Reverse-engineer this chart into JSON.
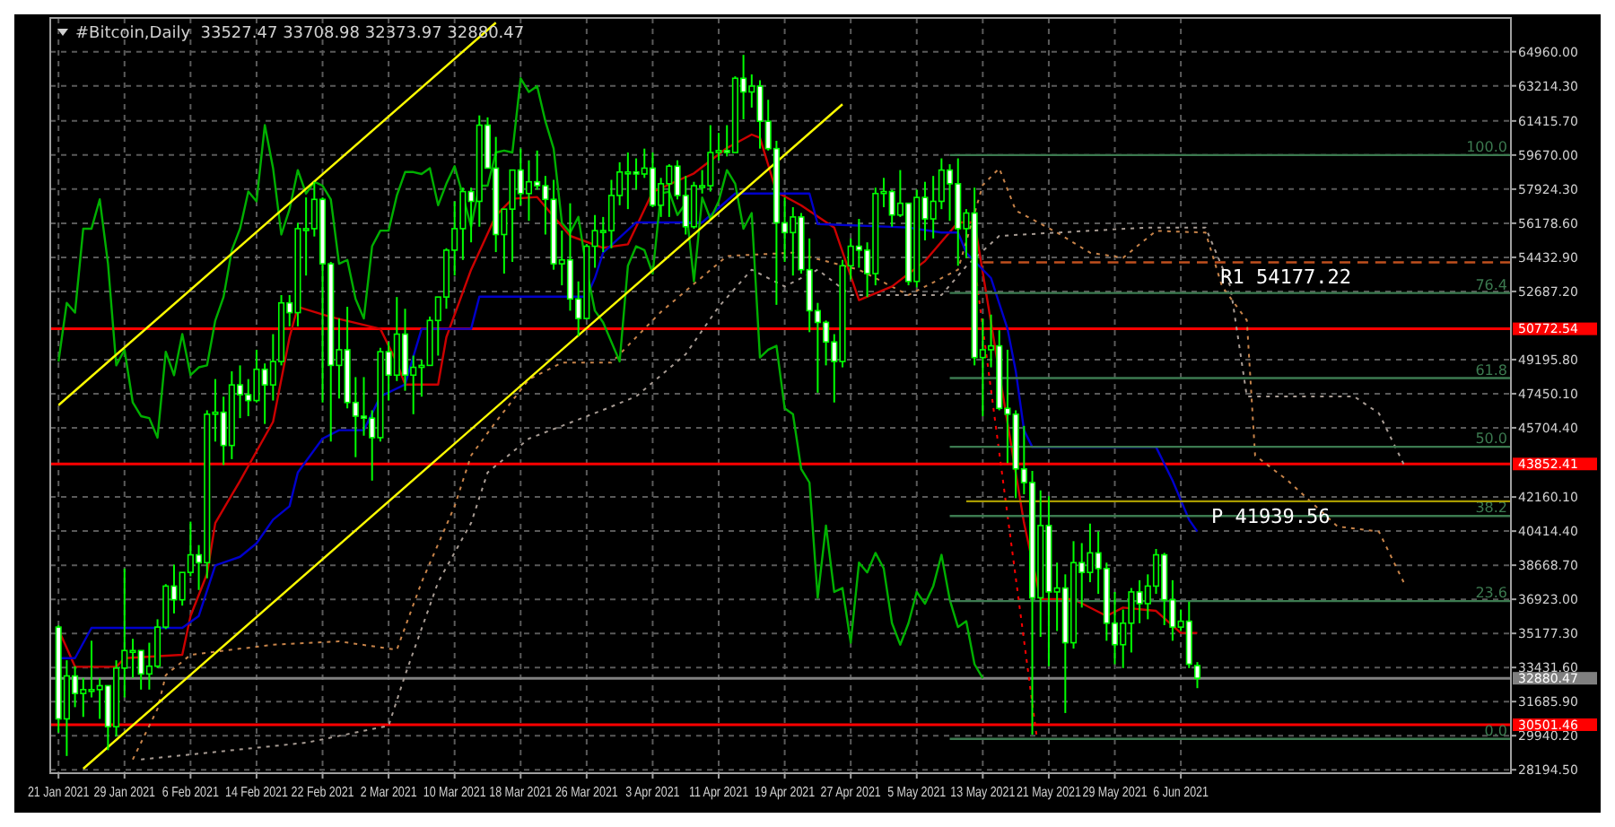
{
  "chart_data": {
    "type": "candlestick",
    "title": "#Bitcoin,Daily  33527.47 33708.98 32373.97 32880.47",
    "color": "#00ff00",
    "x": [
      "2021-01-21",
      "2021-01-22",
      "2021-01-23",
      "2021-01-24",
      "2021-01-25",
      "2021-01-26",
      "2021-01-27",
      "2021-01-28",
      "2021-01-29",
      "2021-01-30",
      "2021-01-31",
      "2021-02-01",
      "2021-02-02",
      "2021-02-03",
      "2021-02-04",
      "2021-02-05",
      "2021-02-06",
      "2021-02-07",
      "2021-02-08",
      "2021-02-09",
      "2021-02-10",
      "2021-02-11",
      "2021-02-12",
      "2021-02-13",
      "2021-02-14",
      "2021-02-15",
      "2021-02-16",
      "2021-02-17",
      "2021-02-18",
      "2021-02-19",
      "2021-02-20",
      "2021-02-21",
      "2021-02-22",
      "2021-02-23",
      "2021-02-24",
      "2021-02-25",
      "2021-02-26",
      "2021-02-27",
      "2021-02-28",
      "2021-03-01",
      "2021-03-02",
      "2021-03-03",
      "2021-03-04",
      "2021-03-05",
      "2021-03-06",
      "2021-03-07",
      "2021-03-08",
      "2021-03-09",
      "2021-03-10",
      "2021-03-11",
      "2021-03-12",
      "2021-03-13",
      "2021-03-14",
      "2021-03-15",
      "2021-03-16",
      "2021-03-17",
      "2021-03-18",
      "2021-03-19",
      "2021-03-20",
      "2021-03-21",
      "2021-03-22",
      "2021-03-23",
      "2021-03-24",
      "2021-03-25",
      "2021-03-26",
      "2021-03-27",
      "2021-03-28",
      "2021-03-29",
      "2021-03-30",
      "2021-03-31",
      "2021-04-01",
      "2021-04-02",
      "2021-04-03",
      "2021-04-04",
      "2021-04-05",
      "2021-04-06",
      "2021-04-07",
      "2021-04-08",
      "2021-04-09",
      "2021-04-10",
      "2021-04-11",
      "2021-04-12",
      "2021-04-13",
      "2021-04-14",
      "2021-04-15",
      "2021-04-16",
      "2021-04-17",
      "2021-04-18",
      "2021-04-19",
      "2021-04-20",
      "2021-04-21",
      "2021-04-22",
      "2021-04-23",
      "2021-04-24",
      "2021-04-25",
      "2021-04-26",
      "2021-04-27",
      "2021-04-28",
      "2021-04-29",
      "2021-04-30",
      "2021-05-01",
      "2021-05-02",
      "2021-05-03",
      "2021-05-04",
      "2021-05-05",
      "2021-05-06",
      "2021-05-07",
      "2021-05-08",
      "2021-05-09",
      "2021-05-10",
      "2021-05-11",
      "2021-05-12",
      "2021-05-13",
      "2021-05-14",
      "2021-05-15",
      "2021-05-16",
      "2021-05-17",
      "2021-05-18",
      "2021-05-19",
      "2021-05-20",
      "2021-05-21",
      "2021-05-22",
      "2021-05-23",
      "2021-05-24",
      "2021-05-25",
      "2021-05-26",
      "2021-05-27",
      "2021-05-28",
      "2021-05-29",
      "2021-05-30",
      "2021-05-31",
      "2021-06-01",
      "2021-06-02",
      "2021-06-03",
      "2021-06-04",
      "2021-06-05",
      "2021-06-06",
      "2021-06-07",
      "2021-06-08"
    ],
    "ohlc": [
      [
        35500,
        35600,
        30100,
        30800
      ],
      [
        30800,
        33800,
        28900,
        33000
      ],
      [
        33000,
        33500,
        31400,
        32100
      ],
      [
        32100,
        32900,
        30900,
        32300
      ],
      [
        32300,
        34800,
        31900,
        32300
      ],
      [
        32300,
        32900,
        30800,
        32500
      ],
      [
        32500,
        32500,
        29200,
        30400
      ],
      [
        30400,
        33800,
        29900,
        33400
      ],
      [
        33400,
        38500,
        31900,
        34300
      ],
      [
        34300,
        34900,
        32900,
        34300
      ],
      [
        34300,
        34300,
        32300,
        33100
      ],
      [
        33100,
        34700,
        32300,
        33500
      ],
      [
        33500,
        35900,
        33400,
        35500
      ],
      [
        35500,
        37700,
        35400,
        37600
      ],
      [
        37600,
        38700,
        36200,
        36900
      ],
      [
        36900,
        38300,
        36600,
        38300
      ],
      [
        38300,
        40900,
        38100,
        39200
      ],
      [
        39200,
        39700,
        37400,
        38800
      ],
      [
        38800,
        46600,
        38000,
        46400
      ],
      [
        46400,
        48200,
        45000,
        46500
      ],
      [
        46500,
        47300,
        43800,
        44800
      ],
      [
        44800,
        48600,
        44100,
        47900
      ],
      [
        47900,
        48900,
        46200,
        47400
      ],
      [
        47400,
        48200,
        46300,
        47100
      ],
      [
        47100,
        49700,
        47000,
        48700
      ],
      [
        48700,
        49000,
        45900,
        47900
      ],
      [
        47900,
        50500,
        47100,
        49100
      ],
      [
        49100,
        52500,
        48900,
        52100
      ],
      [
        52100,
        52500,
        50900,
        51600
      ],
      [
        51600,
        56200,
        50900,
        55900
      ],
      [
        55900,
        57500,
        53500,
        55900
      ],
      [
        55900,
        58300,
        55500,
        57400
      ],
      [
        57400,
        57500,
        47000,
        54100
      ],
      [
        54100,
        54200,
        45000,
        48900
      ],
      [
        48900,
        51300,
        47200,
        49700
      ],
      [
        49700,
        51900,
        46700,
        47000
      ],
      [
        47000,
        48300,
        44200,
        46300
      ],
      [
        46300,
        48300,
        45300,
        46200
      ],
      [
        46200,
        46600,
        43000,
        45200
      ],
      [
        45200,
        49800,
        45000,
        49600
      ],
      [
        49600,
        50100,
        47100,
        48400
      ],
      [
        48400,
        52400,
        48100,
        50500
      ],
      [
        50500,
        51800,
        47600,
        48400
      ],
      [
        48400,
        49400,
        46400,
        48800
      ],
      [
        48800,
        49200,
        47300,
        48900
      ],
      [
        48900,
        51400,
        48900,
        51200
      ],
      [
        51200,
        52400,
        49400,
        52400
      ],
      [
        52400,
        54900,
        51800,
        54800
      ],
      [
        54800,
        57300,
        53500,
        55900
      ],
      [
        55900,
        58000,
        54300,
        57800
      ],
      [
        57800,
        58000,
        55200,
        57300
      ],
      [
        57300,
        61700,
        56000,
        61200
      ],
      [
        61200,
        61600,
        59000,
        59000
      ],
      [
        59000,
        60600,
        54700,
        55600
      ],
      [
        55600,
        56900,
        53600,
        56900
      ],
      [
        56900,
        58900,
        54200,
        58900
      ],
      [
        58900,
        60000,
        57100,
        57700
      ],
      [
        57700,
        59400,
        56300,
        58300
      ],
      [
        58300,
        59900,
        57900,
        58100
      ],
      [
        58100,
        58600,
        55600,
        57400
      ],
      [
        57400,
        58400,
        53800,
        54100
      ],
      [
        54100,
        55800,
        53000,
        54300
      ],
      [
        54300,
        57200,
        51700,
        52300
      ],
      [
        52300,
        53200,
        50400,
        51300
      ],
      [
        51300,
        55100,
        51300,
        55000
      ],
      [
        55000,
        56600,
        53900,
        55800
      ],
      [
        55800,
        56500,
        54700,
        55800
      ],
      [
        55800,
        58400,
        54900,
        57600
      ],
      [
        57600,
        59300,
        57100,
        58800
      ],
      [
        58800,
        59800,
        56900,
        58800
      ],
      [
        58800,
        59500,
        57900,
        58700
      ],
      [
        58700,
        60000,
        58500,
        59000
      ],
      [
        59000,
        59800,
        57000,
        57100
      ],
      [
        57100,
        58500,
        56500,
        58200
      ],
      [
        58200,
        59200,
        56500,
        59100
      ],
      [
        59100,
        59400,
        57400,
        57600
      ],
      [
        57600,
        58600,
        55600,
        56000
      ],
      [
        56000,
        58300,
        55900,
        58100
      ],
      [
        58100,
        58900,
        57700,
        58100
      ],
      [
        58100,
        61200,
        57800,
        59800
      ],
      [
        59800,
        60800,
        59400,
        59900
      ],
      [
        59900,
        61200,
        59600,
        59800
      ],
      [
        59800,
        63700,
        59800,
        63600
      ],
      [
        63600,
        64800,
        61500,
        62900
      ],
      [
        62900,
        63800,
        62100,
        63200
      ],
      [
        63200,
        63500,
        60000,
        61400
      ],
      [
        61400,
        62500,
        59900,
        60000
      ],
      [
        60000,
        60400,
        52000,
        56200
      ],
      [
        56200,
        57500,
        54200,
        55700
      ],
      [
        55700,
        57000,
        53500,
        56500
      ],
      [
        56500,
        56700,
        53600,
        53800
      ],
      [
        53800,
        55400,
        50600,
        51700
      ],
      [
        51700,
        52100,
        47500,
        51100
      ],
      [
        51100,
        51200,
        48900,
        50100
      ],
      [
        50100,
        50500,
        47000,
        49100
      ],
      [
        49100,
        54300,
        48800,
        54000
      ],
      [
        54000,
        55400,
        53300,
        55000
      ],
      [
        55000,
        56400,
        53900,
        54800
      ],
      [
        54800,
        55200,
        52400,
        53600
      ],
      [
        53600,
        58000,
        53000,
        57700
      ],
      [
        57700,
        58500,
        57000,
        57800
      ],
      [
        57800,
        57900,
        56000,
        56600
      ],
      [
        56600,
        58900,
        56500,
        57200
      ],
      [
        57200,
        57200,
        53000,
        53200
      ],
      [
        53200,
        57900,
        52900,
        57500
      ],
      [
        57500,
        58300,
        55300,
        56400
      ],
      [
        56400,
        58600,
        55400,
        57300
      ],
      [
        57300,
        59500,
        56900,
        58900
      ],
      [
        58900,
        59200,
        56300,
        58200
      ],
      [
        58200,
        59500,
        54000,
        55900
      ],
      [
        55900,
        56900,
        54400,
        56700
      ],
      [
        56700,
        58000,
        48900,
        49300
      ],
      [
        49300,
        51300,
        46300,
        49700
      ],
      [
        49700,
        51500,
        48800,
        49900
      ],
      [
        49900,
        50700,
        46600,
        46700
      ],
      [
        46700,
        49700,
        43900,
        46400
      ],
      [
        46400,
        46600,
        42100,
        43600
      ],
      [
        43600,
        45800,
        42300,
        42900
      ],
      [
        42900,
        43500,
        30000,
        37000
      ],
      [
        37000,
        42500,
        35000,
        40700
      ],
      [
        40700,
        42200,
        33500,
        37300
      ],
      [
        37300,
        38800,
        35300,
        37500
      ],
      [
        37500,
        38200,
        31100,
        34700
      ],
      [
        34700,
        39900,
        34400,
        38800
      ],
      [
        38800,
        39800,
        36500,
        38300
      ],
      [
        38300,
        40800,
        37800,
        39300
      ],
      [
        39300,
        40400,
        37200,
        38500
      ],
      [
        38500,
        38800,
        34800,
        35700
      ],
      [
        35700,
        37300,
        33600,
        34600
      ],
      [
        34600,
        36400,
        33400,
        35700
      ],
      [
        35700,
        37500,
        34200,
        37300
      ],
      [
        37300,
        37900,
        35700,
        36700
      ],
      [
        36700,
        38200,
        35900,
        37600
      ],
      [
        37600,
        39500,
        37200,
        39200
      ],
      [
        39200,
        39300,
        35600,
        36900
      ],
      [
        36900,
        37900,
        34800,
        35500
      ],
      [
        35500,
        36400,
        35300,
        35800
      ],
      [
        35800,
        36800,
        33400,
        33600
      ],
      [
        33527.47,
        33708.98,
        32373.97,
        32880.47
      ]
    ],
    "series": [
      {
        "type": "line",
        "color": "#c8844a",
        "line_style": "dotted",
        "x": [
          "2021-01-30",
          "2021-02-02",
          "2021-02-03",
          "2021-02-06",
          "2021-02-16",
          "2021-02-24",
          "2021-03-03",
          "2021-03-06",
          "2021-03-10",
          "2021-03-12",
          "2021-03-15",
          "2021-03-19",
          "2021-03-23",
          "2021-03-29",
          "2021-04-04",
          "2021-04-12",
          "2021-04-20",
          "2021-04-28",
          "2021-05-04",
          "2021-05-10",
          "2021-05-13",
          "2021-05-15",
          "2021-05-17",
          "2021-05-22",
          "2021-05-26",
          "2021-05-30",
          "2021-06-03",
          "2021-06-09",
          "2021-06-11",
          "2021-06-14",
          "2021-06-15",
          "2021-06-19",
          "2021-06-25",
          "2021-06-30",
          "2021-07-03"
        ],
        "values": [
          28720,
          31310,
          33040,
          34080,
          34600,
          34770,
          34340,
          37800,
          41690,
          44290,
          46010,
          48180,
          49040,
          49040,
          51640,
          54500,
          54670,
          53800,
          52500,
          53800,
          58130,
          58990,
          56830,
          55700,
          54670,
          54410,
          55790,
          55700,
          52940,
          51210,
          44290,
          42990,
          40650,
          40390,
          37800
        ]
      },
      {
        "type": "line",
        "color": "#a89c94",
        "line_style": "dotted",
        "x": [
          "2021-01-31",
          "2021-02-10",
          "2021-02-20",
          "2021-03-02",
          "2021-03-04",
          "2021-03-08",
          "2021-03-12",
          "2021-03-14",
          "2021-03-19",
          "2021-03-28",
          "2021-04-01",
          "2021-04-07",
          "2021-04-11",
          "2021-04-15",
          "2021-04-19",
          "2021-04-23",
          "2021-04-27",
          "2021-05-08",
          "2021-05-11",
          "2021-05-15",
          "2021-05-22",
          "2021-06-02",
          "2021-06-09",
          "2021-06-12",
          "2021-06-14",
          "2021-06-27",
          "2021-06-30",
          "2021-07-03"
        ],
        "values": [
          28720,
          29150,
          29580,
          30450,
          33040,
          37800,
          40830,
          43420,
          45150,
          46620,
          47310,
          49470,
          51900,
          53800,
          52940,
          53800,
          52500,
          52500,
          53980,
          55530,
          55700,
          55960,
          55960,
          52940,
          47310,
          47310,
          46450,
          43850
        ]
      },
      {
        "type": "line",
        "color": "#cc0000",
        "x": [
          "2021-01-21",
          "2021-01-23",
          "2021-01-28",
          "2021-01-29",
          "2021-02-05",
          "2021-02-06",
          "2021-02-08",
          "2021-02-09",
          "2021-02-12",
          "2021-02-16",
          "2021-02-18",
          "2021-02-19",
          "2021-02-23",
          "2021-03-01",
          "2021-03-03",
          "2021-03-04",
          "2021-03-08",
          "2021-03-09",
          "2021-03-12",
          "2021-03-15",
          "2021-03-17",
          "2021-03-20",
          "2021-03-24",
          "2021-03-28",
          "2021-03-31",
          "2021-04-03",
          "2021-04-08",
          "2021-04-12",
          "2021-04-15",
          "2021-04-16",
          "2021-04-18",
          "2021-04-21",
          "2021-04-25",
          "2021-04-28",
          "2021-05-02",
          "2021-05-06",
          "2021-05-10",
          "2021-05-12",
          "2021-05-18",
          "2021-05-20",
          "2021-05-24",
          "2021-05-28",
          "2021-05-30",
          "2021-06-03",
          "2021-06-06",
          "2021-06-08"
        ],
        "values": [
          35380,
          33470,
          33470,
          33910,
          34080,
          36070,
          38230,
          40830,
          42990,
          46010,
          50340,
          51900,
          51380,
          50770,
          49040,
          47920,
          47920,
          50340,
          53800,
          56570,
          57430,
          57520,
          55530,
          54920,
          55100,
          57780,
          58730,
          60030,
          60720,
          60550,
          57780,
          57090,
          55960,
          52240,
          52940,
          54240,
          56220,
          56220,
          40830,
          36930,
          36930,
          36070,
          36500,
          36330,
          35200,
          35200
        ]
      },
      {
        "type": "line",
        "color": "#0000cc",
        "x": [
          "2021-01-21",
          "2021-01-23",
          "2021-01-25",
          "2021-02-05",
          "2021-02-07",
          "2021-02-09",
          "2021-02-12",
          "2021-02-14",
          "2021-02-16",
          "2021-02-18",
          "2021-02-19",
          "2021-02-22",
          "2021-02-24",
          "2021-02-27",
          "2021-03-01",
          "2021-03-04",
          "2021-03-06",
          "2021-03-12",
          "2021-03-13",
          "2021-03-26",
          "2021-03-27",
          "2021-03-28",
          "2021-04-01",
          "2021-04-09",
          "2021-04-13",
          "2021-04-22",
          "2021-04-23",
          "2021-05-04",
          "2021-05-08",
          "2021-05-10",
          "2021-05-11",
          "2021-05-14",
          "2021-05-16",
          "2021-05-17",
          "2021-05-18",
          "2021-05-19",
          "2021-06-03",
          "2021-06-05",
          "2021-06-07",
          "2021-06-08"
        ],
        "values": [
          33910,
          33910,
          35460,
          35460,
          36070,
          38660,
          39100,
          39790,
          41000,
          41690,
          43420,
          45150,
          45580,
          45580,
          47310,
          47920,
          50770,
          50770,
          52420,
          52420,
          53370,
          54670,
          56220,
          56220,
          57700,
          57700,
          56140,
          55960,
          55700,
          55700,
          54670,
          53370,
          50770,
          48610,
          45580,
          44720,
          44720,
          43000,
          41000,
          40390
        ]
      },
      {
        "type": "line",
        "color": "#00b000",
        "x": [
          "2021-01-21",
          "2021-01-22",
          "2021-01-23",
          "2021-01-24",
          "2021-01-25",
          "2021-01-26",
          "2021-01-27",
          "2021-01-28",
          "2021-01-29",
          "2021-01-30",
          "2021-01-31",
          "2021-02-01",
          "2021-02-02",
          "2021-02-03",
          "2021-02-04",
          "2021-02-05",
          "2021-02-06",
          "2021-02-07",
          "2021-02-08",
          "2021-02-09",
          "2021-02-10",
          "2021-02-11",
          "2021-02-12",
          "2021-02-13",
          "2021-02-14",
          "2021-02-15",
          "2021-02-16",
          "2021-02-17",
          "2021-02-18",
          "2021-02-19",
          "2021-02-20",
          "2021-02-21",
          "2021-02-22",
          "2021-02-23",
          "2021-02-24",
          "2021-02-25",
          "2021-02-26",
          "2021-02-27",
          "2021-02-28",
          "2021-03-01",
          "2021-03-02",
          "2021-03-03",
          "2021-03-04",
          "2021-03-05",
          "2021-03-06",
          "2021-03-07",
          "2021-03-08",
          "2021-03-09",
          "2021-03-10",
          "2021-03-11",
          "2021-03-12",
          "2021-03-13",
          "2021-03-14",
          "2021-03-15",
          "2021-03-16",
          "2021-03-17",
          "2021-03-18",
          "2021-03-19",
          "2021-03-20",
          "2021-03-21",
          "2021-03-22",
          "2021-03-23",
          "2021-03-24",
          "2021-03-25",
          "2021-03-26",
          "2021-03-27",
          "2021-03-28",
          "2021-03-29",
          "2021-03-30",
          "2021-03-31",
          "2021-04-01",
          "2021-04-02",
          "2021-04-03",
          "2021-04-04",
          "2021-04-05",
          "2021-04-06",
          "2021-04-07",
          "2021-04-08",
          "2021-04-09",
          "2021-04-10",
          "2021-04-11",
          "2021-04-12",
          "2021-04-13",
          "2021-04-14",
          "2021-04-15",
          "2021-04-16",
          "2021-04-17",
          "2021-04-18",
          "2021-04-19",
          "2021-04-20",
          "2021-04-21",
          "2021-04-22",
          "2021-04-23",
          "2021-04-24",
          "2021-04-25",
          "2021-04-26",
          "2021-04-27",
          "2021-04-28",
          "2021-04-29",
          "2021-04-30",
          "2021-05-01",
          "2021-05-02",
          "2021-05-03",
          "2021-05-04",
          "2021-05-05",
          "2021-05-06",
          "2021-05-07",
          "2021-05-08",
          "2021-05-09",
          "2021-05-10",
          "2021-05-11",
          "2021-05-12",
          "2021-05-13"
        ],
        "values": [
          49100,
          52100,
          51600,
          55900,
          55900,
          57400,
          54100,
          48900,
          49700,
          47000,
          46300,
          46200,
          45200,
          49600,
          48400,
          50500,
          48400,
          48800,
          48900,
          51200,
          52400,
          54800,
          55900,
          57800,
          57300,
          61200,
          59000,
          55600,
          56900,
          58900,
          57700,
          58300,
          58100,
          57400,
          54100,
          54300,
          52300,
          51300,
          55000,
          55800,
          55800,
          57600,
          58800,
          58800,
          58700,
          59000,
          57100,
          58200,
          59100,
          57600,
          56000,
          58100,
          58100,
          59800,
          59900,
          59800,
          63600,
          62900,
          63200,
          61400,
          60000,
          56200,
          55700,
          56500,
          53800,
          51700,
          51100,
          50100,
          49100,
          54000,
          55000,
          54800,
          53600,
          57700,
          57800,
          56600,
          57200,
          53200,
          57500,
          56400,
          57300,
          58900,
          58200,
          55900,
          56700,
          49300,
          49700,
          49900,
          46700,
          46400,
          43600,
          42900,
          37000,
          40700,
          37300,
          37500,
          34700,
          38800,
          38300,
          39300,
          38500,
          35700,
          34600,
          35700,
          37300,
          36700,
          37600,
          39200,
          36900,
          35500,
          35800,
          33600,
          32880.47
        ]
      },
      {
        "type": "line",
        "color": "#ffff00",
        "x": [
          "2021-01-21",
          "2021-03-15"
        ],
        "values": [
          46860,
          66450
        ]
      },
      {
        "type": "line",
        "color": "#ffff00",
        "x": [
          "2021-01-24",
          "2021-04-26"
        ],
        "values": [
          28250,
          62270
        ]
      },
      {
        "type": "line",
        "color": "#ff0000",
        "line_style": "dotted",
        "x": [
          "2021-05-12",
          "2021-05-19T12:00"
        ],
        "values": [
          54070,
          30000
        ]
      },
      {
        "type": "line",
        "name": "100.0",
        "color": "#3c7a50",
        "x": [
          "2021-05-09",
          "2021-07-16"
        ],
        "values": [
          59670,
          59670
        ]
      },
      {
        "type": "line",
        "name": "76.4",
        "color": "#3c7a50",
        "x": [
          "2021-05-09",
          "2021-07-16"
        ],
        "values": [
          52610,
          52610
        ]
      },
      {
        "type": "line",
        "name": "61.8",
        "color": "#3c7a50",
        "x": [
          "2021-05-09",
          "2021-07-16"
        ],
        "values": [
          48250,
          48250
        ]
      },
      {
        "type": "line",
        "name": "50.0",
        "color": "#3c7a50",
        "x": [
          "2021-05-09",
          "2021-07-16"
        ],
        "values": [
          44730,
          44730
        ]
      },
      {
        "type": "line",
        "name": "38.2",
        "color": "#3c7a50",
        "x": [
          "2021-05-09",
          "2021-07-16"
        ],
        "values": [
          41190,
          41190
        ]
      },
      {
        "type": "line",
        "name": "23.6",
        "color": "#3c7a50",
        "x": [
          "2021-05-09",
          "2021-07-16"
        ],
        "values": [
          36830,
          36830
        ]
      },
      {
        "type": "line",
        "name": "0.0",
        "color": "#3c7a50",
        "x": [
          "2021-05-09",
          "2021-07-16"
        ],
        "values": [
          29780,
          29780
        ]
      },
      {
        "type": "line",
        "name": "R1 54177.22",
        "color": "#c0501e",
        "line_style": "dashed",
        "x": [
          "2021-05-13",
          "2021-07-16"
        ],
        "values": [
          54177.22,
          54177.22
        ]
      },
      {
        "type": "line",
        "name": "P 41939.56",
        "color": "#a89a00",
        "line_style": "solid",
        "x": [
          "2021-05-11",
          "2021-07-16"
        ],
        "values": [
          41939.56,
          41939.56
        ]
      }
    ],
    "ref_lines": [
      {
        "axis": "y",
        "value": 50772.54,
        "label": "50772.54",
        "color": "#ff0000"
      },
      {
        "axis": "y",
        "value": 43852.41,
        "label": "43852.41",
        "color": "#ff0000"
      },
      {
        "axis": "y",
        "value": 30501.46,
        "label": "30501.46",
        "color": "#ff0000"
      },
      {
        "axis": "y",
        "value": 32880.47,
        "label": "32880.47",
        "color": "#808080"
      }
    ],
    "xlim": [
      "2021-01-20",
      "2021-07-16"
    ],
    "xticks": [
      {
        "value": "2021-01-21",
        "label": "21 Jan 2021"
      },
      {
        "value": "2021-01-29",
        "label": "29 Jan 2021"
      },
      {
        "value": "2021-02-06",
        "label": "6 Feb 2021"
      },
      {
        "value": "2021-02-14",
        "label": "14 Feb 2021"
      },
      {
        "value": "2021-02-22",
        "label": "22 Feb 2021"
      },
      {
        "value": "2021-03-02",
        "label": "2 Mar 2021"
      },
      {
        "value": "2021-03-10",
        "label": "10 Mar 2021"
      },
      {
        "value": "2021-03-18",
        "label": "18 Mar 2021"
      },
      {
        "value": "2021-03-26",
        "label": "26 Mar 2021"
      },
      {
        "value": "2021-04-03",
        "label": "3 Apr 2021"
      },
      {
        "value": "2021-04-11",
        "label": "11 Apr 2021"
      },
      {
        "value": "2021-04-19",
        "label": "19 Apr 2021"
      },
      {
        "value": "2021-04-27",
        "label": "27 Apr 2021"
      },
      {
        "value": "2021-05-05",
        "label": "5 May 2021"
      },
      {
        "value": "2021-05-13",
        "label": "13 May 2021"
      },
      {
        "value": "2021-05-21",
        "label": "21 May 2021"
      },
      {
        "value": "2021-05-29",
        "label": "29 May 2021"
      },
      {
        "value": "2021-06-06",
        "label": "6 Jun 2021"
      }
    ],
    "ylim": [
      28020,
      66690
    ],
    "yticks": [
      {
        "value": 64960,
        "label": "64960.00"
      },
      {
        "value": 63214.3,
        "label": "63214.30"
      },
      {
        "value": 61415.7,
        "label": "61415.70"
      },
      {
        "value": 59670,
        "label": "59670.00"
      },
      {
        "value": 57924.3,
        "label": "57924.30"
      },
      {
        "value": 56178.6,
        "label": "56178.60"
      },
      {
        "value": 54432.9,
        "label": "54432.90"
      },
      {
        "value": 52687.2,
        "label": "52687.20"
      },
      {
        "value": 49195.8,
        "label": "49195.80"
      },
      {
        "value": 47450.1,
        "label": "47450.10"
      },
      {
        "value": 45704.4,
        "label": "45704.40"
      },
      {
        "value": 42160.1,
        "label": "42160.10"
      },
      {
        "value": 40414.4,
        "label": "40414.40"
      },
      {
        "value": 38668.7,
        "label": "38668.70"
      },
      {
        "value": 36923,
        "label": "36923.00"
      },
      {
        "value": 35177.3,
        "label": "35177.30"
      },
      {
        "value": 33431.6,
        "label": "33431.60"
      },
      {
        "value": 31685.9,
        "label": "31685.90"
      },
      {
        "value": 29940.2,
        "label": "29940.20"
      },
      {
        "value": 28194.5,
        "label": "28194.50"
      }
    ],
    "grid": true
  }
}
